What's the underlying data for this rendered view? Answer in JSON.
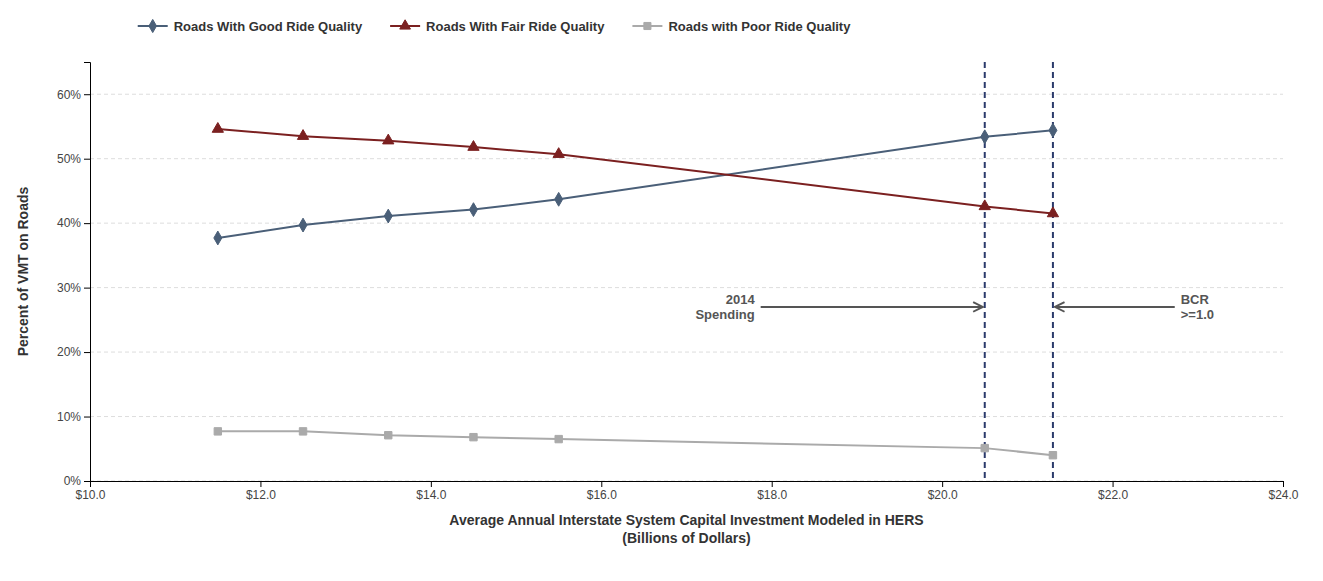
{
  "chart_data": {
    "type": "line",
    "xlabel": "Average Annual Interstate System Capital Investment Modeled in HERS\n(Billions of Dollars)",
    "ylabel": "Percent of VMT on Roads",
    "x": [
      11.5,
      12.5,
      13.5,
      14.5,
      15.5,
      20.5,
      21.3
    ],
    "series": [
      {
        "name": "Roads With Good Ride Quality",
        "color": "#4A5F78",
        "marker": "diamond",
        "values": [
          37.7,
          39.7,
          41.1,
          42.1,
          43.7,
          53.4,
          54.4
        ]
      },
      {
        "name": "Roads With Fair Ride Quality",
        "color": "#7B2020",
        "marker": "triangle",
        "values": [
          54.6,
          53.5,
          52.8,
          51.8,
          50.7,
          42.6,
          41.5
        ]
      },
      {
        "name": "Roads with Poor Ride Quality",
        "color": "#AAAAAA",
        "marker": "square",
        "values": [
          7.7,
          7.7,
          7.1,
          6.8,
          6.5,
          5.1,
          4.0
        ]
      }
    ],
    "vlines": [
      {
        "x": 20.5,
        "color": "#2B3A6B",
        "line_style": "dashed"
      },
      {
        "x": 21.3,
        "color": "#2B3A6B",
        "line_style": "dashed"
      }
    ],
    "annotations": [
      {
        "text": "2014\nSpending",
        "x": 20.5,
        "y": 27.0,
        "text_x": 17.8,
        "text_y": 27.0,
        "color": "#555555"
      },
      {
        "text": "BCR\n>=1.0",
        "x": 21.3,
        "y": 27.0,
        "text_x": 22.8,
        "text_y": 27.0,
        "color": "#555555"
      }
    ],
    "xlim": [
      10.0,
      24.0
    ],
    "ylim": [
      0.0,
      65.0
    ],
    "xticks": [
      {
        "value": 10.0,
        "label": "$10.0"
      },
      {
        "value": 12.0,
        "label": "$12.0"
      },
      {
        "value": 14.0,
        "label": "$14.0"
      },
      {
        "value": 16.0,
        "label": "$16.0"
      },
      {
        "value": 18.0,
        "label": "$18.0"
      },
      {
        "value": 20.0,
        "label": "$20.0"
      },
      {
        "value": 22.0,
        "label": "$22.0"
      },
      {
        "value": 24.0,
        "label": "$24.0"
      }
    ],
    "yticks": [
      {
        "value": 0,
        "label": "0%"
      },
      {
        "value": 10,
        "label": "10%"
      },
      {
        "value": 20,
        "label": "20%"
      },
      {
        "value": 30,
        "label": "30%"
      },
      {
        "value": 40,
        "label": "40%"
      },
      {
        "value": 50,
        "label": "50%"
      },
      {
        "value": 60,
        "label": "60%"
      }
    ],
    "grid": "y",
    "legend": "top"
  }
}
